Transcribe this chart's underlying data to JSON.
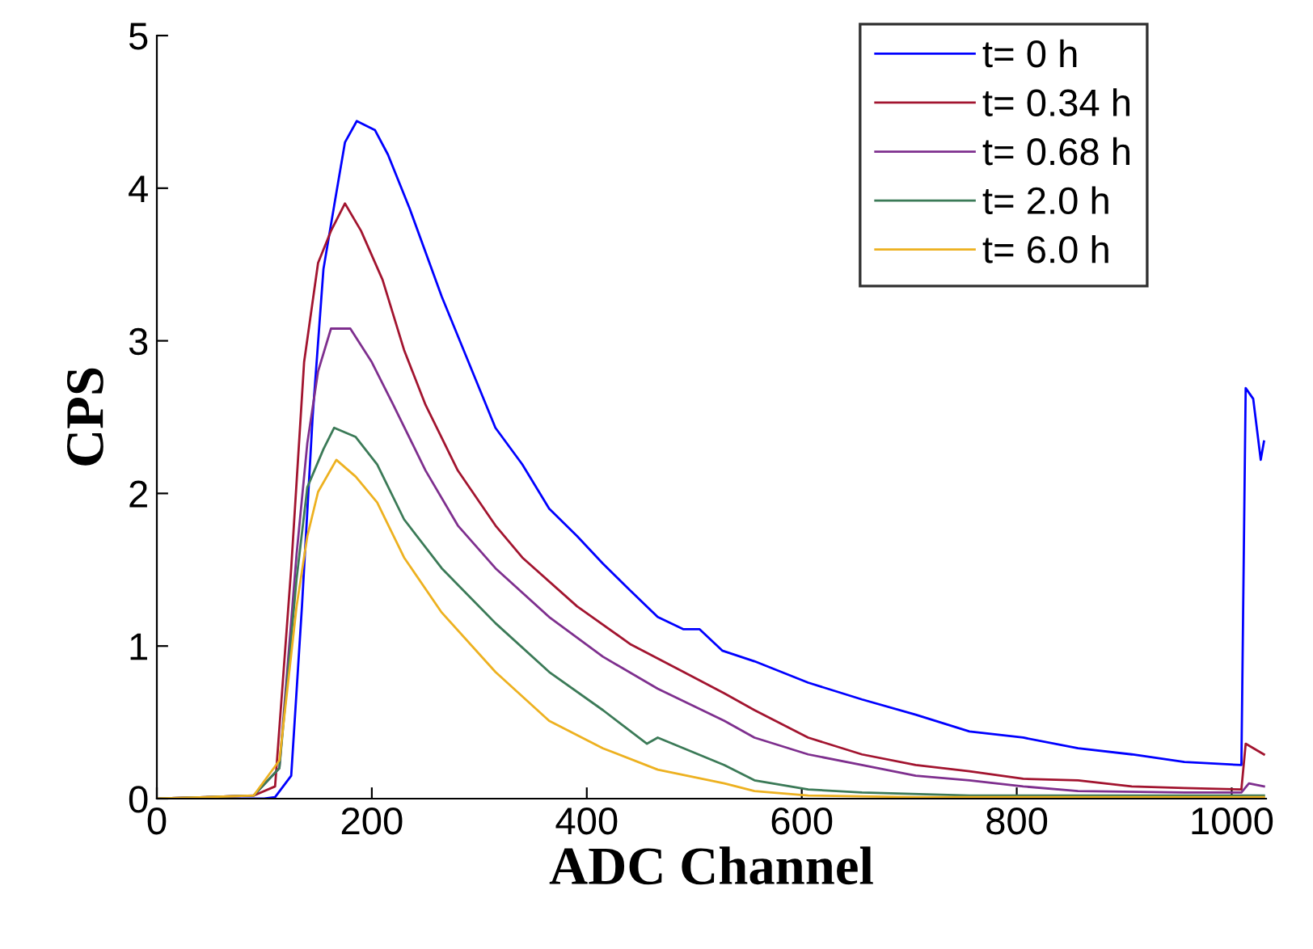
{
  "chart_data": {
    "type": "line",
    "xlabel": "ADC Channel",
    "ylabel": "CPS",
    "xlim": [
      0,
      1032
    ],
    "ylim": [
      0,
      5
    ],
    "xticks": [
      0,
      200,
      400,
      600,
      800,
      1000
    ],
    "yticks": [
      0,
      1,
      2,
      3,
      4,
      5
    ],
    "grid": false,
    "legend": "top right",
    "marker": "none",
    "line_style": "solid",
    "series": [
      {
        "name": "t= 0 h",
        "color": "#0000ff",
        "x": [
          0,
          100,
          110,
          125,
          135,
          145,
          155,
          167,
          175,
          186,
          203,
          215,
          235,
          265,
          290,
          315,
          340,
          365,
          391,
          415,
          441,
          466,
          490,
          505,
          526,
          556,
          606,
          656,
          706,
          756,
          806,
          857,
          907,
          956,
          1009,
          1013,
          1020,
          1027,
          1030
        ],
        "values": [
          0,
          0,
          0.01,
          0.15,
          1.26,
          2.51,
          3.47,
          3.97,
          4.3,
          4.44,
          4.38,
          4.22,
          3.87,
          3.29,
          2.86,
          2.43,
          2.19,
          1.9,
          1.72,
          1.54,
          1.36,
          1.19,
          1.11,
          1.11,
          0.97,
          0.9,
          0.76,
          0.65,
          0.55,
          0.44,
          0.4,
          0.33,
          0.29,
          0.24,
          0.22,
          2.69,
          2.62,
          2.22,
          2.34
        ]
      },
      {
        "name": "t= 0.34 h",
        "color": "#a2142f",
        "x": [
          0,
          90,
          110,
          125,
          137,
          150,
          162,
          175,
          190,
          210,
          230,
          250,
          280,
          315,
          340,
          391,
          441,
          490,
          528,
          556,
          606,
          656,
          706,
          756,
          806,
          857,
          907,
          956,
          1009,
          1013,
          1030
        ],
        "values": [
          0,
          0.02,
          0.08,
          1.51,
          2.86,
          3.51,
          3.72,
          3.9,
          3.72,
          3.4,
          2.94,
          2.58,
          2.15,
          1.79,
          1.58,
          1.26,
          1.01,
          0.83,
          0.69,
          0.58,
          0.4,
          0.29,
          0.22,
          0.18,
          0.13,
          0.12,
          0.08,
          0.07,
          0.06,
          0.36,
          0.29
        ]
      },
      {
        "name": "t= 0.68 h",
        "color": "#7e2f8e",
        "x": [
          0,
          90,
          114,
          130,
          140,
          150,
          162,
          180,
          200,
          220,
          250,
          280,
          315,
          365,
          415,
          466,
          528,
          556,
          606,
          656,
          706,
          756,
          806,
          857,
          956,
          1009,
          1016,
          1030
        ],
        "values": [
          0,
          0.02,
          0.2,
          1.6,
          2.33,
          2.8,
          3.08,
          3.08,
          2.86,
          2.58,
          2.15,
          1.79,
          1.51,
          1.19,
          0.93,
          0.72,
          0.51,
          0.4,
          0.29,
          0.22,
          0.15,
          0.12,
          0.08,
          0.05,
          0.04,
          0.04,
          0.1,
          0.08
        ]
      },
      {
        "name": "t= 2.0 h",
        "color": "#3b7a57",
        "x": [
          0,
          90,
          114,
          130,
          140,
          155,
          165,
          185,
          205,
          230,
          265,
          315,
          365,
          415,
          456,
          466,
          528,
          556,
          606,
          656,
          756,
          857,
          1030
        ],
        "values": [
          0,
          0.02,
          0.2,
          1.44,
          2.04,
          2.29,
          2.43,
          2.37,
          2.19,
          1.83,
          1.51,
          1.15,
          0.83,
          0.58,
          0.36,
          0.4,
          0.22,
          0.12,
          0.06,
          0.04,
          0.02,
          0.02,
          0.02
        ]
      },
      {
        "name": "t= 6.0 h",
        "color": "#edb120",
        "x": [
          0,
          90,
          114,
          130,
          140,
          150,
          167,
          185,
          205,
          230,
          265,
          315,
          365,
          415,
          466,
          528,
          556,
          606,
          706,
          1030
        ],
        "values": [
          0,
          0.02,
          0.25,
          1.26,
          1.72,
          2.01,
          2.22,
          2.11,
          1.94,
          1.58,
          1.22,
          0.83,
          0.51,
          0.33,
          0.19,
          0.1,
          0.05,
          0.02,
          0.01,
          0.01
        ]
      }
    ]
  }
}
